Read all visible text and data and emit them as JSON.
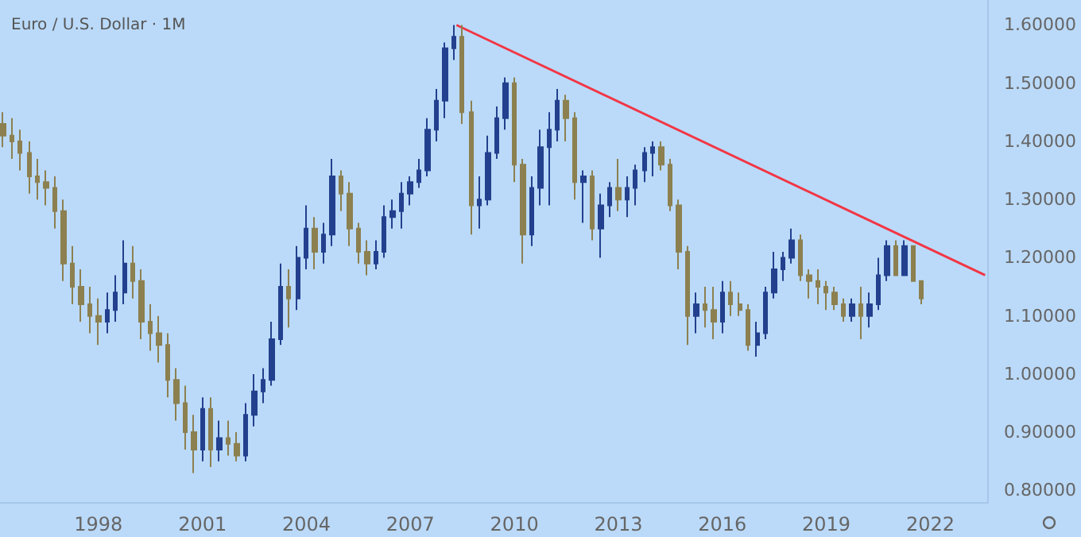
{
  "chart_data": {
    "type": "candlestick",
    "title": "Euro / U.S. Dollar · 1M",
    "xlim": [
      "1995-03",
      "2023-09"
    ],
    "xticks": [
      {
        "value": "1998",
        "label": "1998"
      },
      {
        "value": "2001",
        "label": "2001"
      },
      {
        "value": "2004",
        "label": "2004"
      },
      {
        "value": "2007",
        "label": "2007"
      },
      {
        "value": "2010",
        "label": "2010"
      },
      {
        "value": "2013",
        "label": "2013"
      },
      {
        "value": "2016",
        "label": "2016"
      },
      {
        "value": "2019",
        "label": "2019"
      },
      {
        "value": "2022",
        "label": "2022"
      }
    ],
    "ylim": [
      0.78,
      1.643
    ],
    "yticks": [
      {
        "value": 0.8,
        "label": "0.80000"
      },
      {
        "value": 0.9,
        "label": "0.90000"
      },
      {
        "value": 1.0,
        "label": "1.00000"
      },
      {
        "value": 1.1,
        "label": "1.10000"
      },
      {
        "value": 1.2,
        "label": "1.20000"
      },
      {
        "value": 1.3,
        "label": "1.30000"
      },
      {
        "value": 1.4,
        "label": "1.40000"
      },
      {
        "value": 1.5,
        "label": "1.50000"
      },
      {
        "value": 1.6,
        "label": "1.60000"
      }
    ],
    "grid": false,
    "series": [
      {
        "colors": [
          "#8c8050",
          "#8c8050",
          "#8c8050",
          "#8c8050",
          "#8c8050",
          "#8c8050",
          "#8c8050",
          "#8c8050",
          "#8c8050",
          "#8c8050",
          "#8c8050",
          "#8c8050",
          "#23408e",
          "#23408e",
          "#23408e",
          "#8c8050",
          "#8c8050",
          "#8c8050",
          "#8c8050",
          "#8c8050",
          "#8c8050",
          "#8c8050",
          "#8c8050",
          "#23408e",
          "#8c8050",
          "#23408e",
          "#8c8050",
          "#8c8050",
          "#23408e",
          "#23408e",
          "#23408e",
          "#23408e",
          "#23408e",
          "#8c8050",
          "#23408e",
          "#23408e",
          "#8c8050",
          "#23408e",
          "#23408e",
          "#8c8050",
          "#8c8050",
          "#8c8050",
          "#8c8050",
          "#23408e",
          "#23408e",
          "#23408e",
          "#23408e",
          "#23408e",
          "#23408e",
          "#23408e",
          "#23408e",
          "#23408e",
          "#23408e",
          "#8c8050",
          "#8c8050",
          "#23408e",
          "#23408e",
          "#23408e",
          "#23408e",
          "#8c8050",
          "#8c8050",
          "#23408e",
          "#23408e",
          "#23408e",
          "#23408e",
          "#8c8050",
          "#8c8050",
          "#23408e",
          "#8c8050",
          "#23408e",
          "#23408e",
          "#8c8050",
          "#23408e",
          "#23408e",
          "#23408e",
          "#23408e",
          "#8c8050",
          "#8c8050",
          "#8c8050",
          "#8c8050",
          "#23408e",
          "#8c8050",
          "#8c8050",
          "#23408e",
          "#8c8050",
          "#8c8050",
          "#8c8050",
          "#23408e",
          "#23408e",
          "#23408e",
          "#23408e",
          "#23408e",
          "#8c8050",
          "#8c8050",
          "#8c8050",
          "#8c8050",
          "#8c8050",
          "#8c8050",
          "#23408e",
          "#8c8050",
          "#23408e",
          "#23408e",
          "#23408e",
          "#8c8050",
          "#23408e",
          "#8c8050",
          "#8c8050"
        ],
        "x": [
          "1995-04",
          "1995-07",
          "1995-10",
          "1996-01",
          "1996-04",
          "1996-07",
          "1996-10",
          "1997-01",
          "1997-04",
          "1997-07",
          "1997-10",
          "1998-01",
          "1998-04",
          "1998-07",
          "1998-10",
          "1999-01",
          "1999-04",
          "1999-07",
          "1999-10",
          "2000-01",
          "2000-04",
          "2000-07",
          "2000-10",
          "2001-01",
          "2001-04",
          "2001-07",
          "2001-10",
          "2002-01",
          "2002-04",
          "2002-07",
          "2002-10",
          "2003-01",
          "2003-04",
          "2003-07",
          "2003-10",
          "2004-01",
          "2004-04",
          "2004-07",
          "2004-10",
          "2005-01",
          "2005-04",
          "2005-07",
          "2005-10",
          "2006-01",
          "2006-04",
          "2006-07",
          "2006-10",
          "2007-01",
          "2007-04",
          "2007-07",
          "2007-10",
          "2008-01",
          "2008-04",
          "2008-07",
          "2008-10",
          "2009-01",
          "2009-04",
          "2009-07",
          "2009-10",
          "2010-01",
          "2010-04",
          "2010-07",
          "2010-10",
          "2011-01",
          "2011-04",
          "2011-07",
          "2011-10",
          "2012-01",
          "2012-04",
          "2012-07",
          "2012-10",
          "2013-01",
          "2013-04",
          "2013-07",
          "2013-10",
          "2014-01",
          "2014-04",
          "2014-07",
          "2014-10",
          "2015-01",
          "2015-04",
          "2015-07",
          "2015-10",
          "2016-01",
          "2016-04",
          "2016-07",
          "2016-10",
          "2017-01",
          "2017-04",
          "2017-07",
          "2017-10",
          "2018-01",
          "2018-04",
          "2018-07",
          "2018-10",
          "2019-01",
          "2019-04",
          "2019-07",
          "2019-10",
          "2020-01",
          "2020-04",
          "2020-07",
          "2020-10",
          "2021-01",
          "2021-04",
          "2021-07",
          "2021-10"
        ],
        "ohlc": [
          [
            1.43,
            1.45,
            1.39,
            1.41
          ],
          [
            1.41,
            1.44,
            1.37,
            1.4
          ],
          [
            1.4,
            1.42,
            1.35,
            1.38
          ],
          [
            1.38,
            1.4,
            1.31,
            1.34
          ],
          [
            1.34,
            1.37,
            1.3,
            1.33
          ],
          [
            1.33,
            1.35,
            1.29,
            1.32
          ],
          [
            1.32,
            1.34,
            1.25,
            1.28
          ],
          [
            1.28,
            1.3,
            1.16,
            1.19
          ],
          [
            1.19,
            1.22,
            1.12,
            1.15
          ],
          [
            1.15,
            1.18,
            1.09,
            1.12
          ],
          [
            1.12,
            1.15,
            1.07,
            1.1
          ],
          [
            1.1,
            1.13,
            1.05,
            1.09
          ],
          [
            1.09,
            1.14,
            1.07,
            1.11
          ],
          [
            1.11,
            1.17,
            1.09,
            1.14
          ],
          [
            1.14,
            1.23,
            1.12,
            1.19
          ],
          [
            1.19,
            1.22,
            1.13,
            1.16
          ],
          [
            1.16,
            1.18,
            1.06,
            1.09
          ],
          [
            1.09,
            1.12,
            1.04,
            1.07
          ],
          [
            1.07,
            1.1,
            1.02,
            1.05
          ],
          [
            1.05,
            1.07,
            0.96,
            0.99
          ],
          [
            0.99,
            1.01,
            0.92,
            0.95
          ],
          [
            0.95,
            0.98,
            0.87,
            0.9
          ],
          [
            0.9,
            0.93,
            0.83,
            0.87
          ],
          [
            0.87,
            0.96,
            0.85,
            0.94
          ],
          [
            0.94,
            0.96,
            0.84,
            0.87
          ],
          [
            0.87,
            0.92,
            0.85,
            0.89
          ],
          [
            0.89,
            0.92,
            0.86,
            0.88
          ],
          [
            0.88,
            0.9,
            0.85,
            0.86
          ],
          [
            0.86,
            0.95,
            0.85,
            0.93
          ],
          [
            0.93,
            1.0,
            0.91,
            0.97
          ],
          [
            0.97,
            1.01,
            0.95,
            0.99
          ],
          [
            0.99,
            1.09,
            0.98,
            1.06
          ],
          [
            1.06,
            1.19,
            1.05,
            1.15
          ],
          [
            1.15,
            1.18,
            1.08,
            1.13
          ],
          [
            1.13,
            1.22,
            1.11,
            1.2
          ],
          [
            1.2,
            1.29,
            1.18,
            1.25
          ],
          [
            1.25,
            1.27,
            1.18,
            1.21
          ],
          [
            1.21,
            1.26,
            1.19,
            1.24
          ],
          [
            1.24,
            1.37,
            1.22,
            1.34
          ],
          [
            1.34,
            1.35,
            1.28,
            1.31
          ],
          [
            1.31,
            1.33,
            1.22,
            1.25
          ],
          [
            1.25,
            1.26,
            1.19,
            1.21
          ],
          [
            1.21,
            1.23,
            1.17,
            1.19
          ],
          [
            1.19,
            1.23,
            1.18,
            1.21
          ],
          [
            1.21,
            1.29,
            1.2,
            1.27
          ],
          [
            1.27,
            1.3,
            1.25,
            1.28
          ],
          [
            1.28,
            1.33,
            1.25,
            1.31
          ],
          [
            1.31,
            1.34,
            1.29,
            1.33
          ],
          [
            1.33,
            1.37,
            1.32,
            1.35
          ],
          [
            1.35,
            1.44,
            1.34,
            1.42
          ],
          [
            1.42,
            1.49,
            1.4,
            1.47
          ],
          [
            1.47,
            1.57,
            1.44,
            1.56
          ],
          [
            1.56,
            1.6,
            1.54,
            1.58
          ],
          [
            1.58,
            1.6,
            1.43,
            1.45
          ],
          [
            1.45,
            1.47,
            1.24,
            1.29
          ],
          [
            1.29,
            1.34,
            1.25,
            1.3
          ],
          [
            1.3,
            1.41,
            1.29,
            1.38
          ],
          [
            1.38,
            1.46,
            1.37,
            1.44
          ],
          [
            1.44,
            1.51,
            1.42,
            1.5
          ],
          [
            1.5,
            1.51,
            1.33,
            1.36
          ],
          [
            1.36,
            1.37,
            1.19,
            1.24
          ],
          [
            1.24,
            1.34,
            1.22,
            1.32
          ],
          [
            1.32,
            1.42,
            1.29,
            1.39
          ],
          [
            1.39,
            1.45,
            1.29,
            1.42
          ],
          [
            1.42,
            1.49,
            1.4,
            1.47
          ],
          [
            1.47,
            1.48,
            1.4,
            1.44
          ],
          [
            1.44,
            1.45,
            1.3,
            1.33
          ],
          [
            1.33,
            1.35,
            1.26,
            1.34
          ],
          [
            1.34,
            1.35,
            1.23,
            1.25
          ],
          [
            1.25,
            1.31,
            1.2,
            1.29
          ],
          [
            1.29,
            1.33,
            1.27,
            1.32
          ],
          [
            1.32,
            1.37,
            1.28,
            1.3
          ],
          [
            1.3,
            1.34,
            1.27,
            1.32
          ],
          [
            1.32,
            1.36,
            1.29,
            1.35
          ],
          [
            1.35,
            1.39,
            1.33,
            1.38
          ],
          [
            1.38,
            1.4,
            1.34,
            1.39
          ],
          [
            1.39,
            1.4,
            1.35,
            1.36
          ],
          [
            1.36,
            1.37,
            1.28,
            1.29
          ],
          [
            1.29,
            1.3,
            1.18,
            1.21
          ],
          [
            1.21,
            1.22,
            1.05,
            1.1
          ],
          [
            1.1,
            1.14,
            1.07,
            1.12
          ],
          [
            1.12,
            1.15,
            1.08,
            1.11
          ],
          [
            1.11,
            1.15,
            1.06,
            1.09
          ],
          [
            1.09,
            1.16,
            1.07,
            1.14
          ],
          [
            1.14,
            1.16,
            1.1,
            1.12
          ],
          [
            1.12,
            1.14,
            1.1,
            1.11
          ],
          [
            1.11,
            1.12,
            1.04,
            1.05
          ],
          [
            1.05,
            1.09,
            1.03,
            1.07
          ],
          [
            1.07,
            1.15,
            1.06,
            1.14
          ],
          [
            1.14,
            1.21,
            1.13,
            1.18
          ],
          [
            1.18,
            1.21,
            1.16,
            1.2
          ],
          [
            1.2,
            1.25,
            1.19,
            1.23
          ],
          [
            1.23,
            1.24,
            1.16,
            1.17
          ],
          [
            1.17,
            1.18,
            1.13,
            1.16
          ],
          [
            1.16,
            1.18,
            1.12,
            1.15
          ],
          [
            1.15,
            1.16,
            1.11,
            1.14
          ],
          [
            1.14,
            1.15,
            1.11,
            1.12
          ],
          [
            1.12,
            1.13,
            1.09,
            1.1
          ],
          [
            1.1,
            1.13,
            1.09,
            1.12
          ],
          [
            1.12,
            1.15,
            1.06,
            1.1
          ],
          [
            1.1,
            1.14,
            1.08,
            1.12
          ],
          [
            1.12,
            1.2,
            1.11,
            1.17
          ],
          [
            1.17,
            1.23,
            1.16,
            1.22
          ],
          [
            1.22,
            1.23,
            1.17,
            1.17
          ],
          [
            1.17,
            1.23,
            1.17,
            1.22
          ],
          [
            1.22,
            1.22,
            1.16,
            1.16
          ],
          [
            1.16,
            1.16,
            1.12,
            1.13
          ]
        ]
      },
      {
        "type": "line",
        "color": "#f23645",
        "x": [
          "2008-05",
          "2023-08"
        ],
        "values": [
          1.6,
          1.17
        ]
      }
    ]
  }
}
